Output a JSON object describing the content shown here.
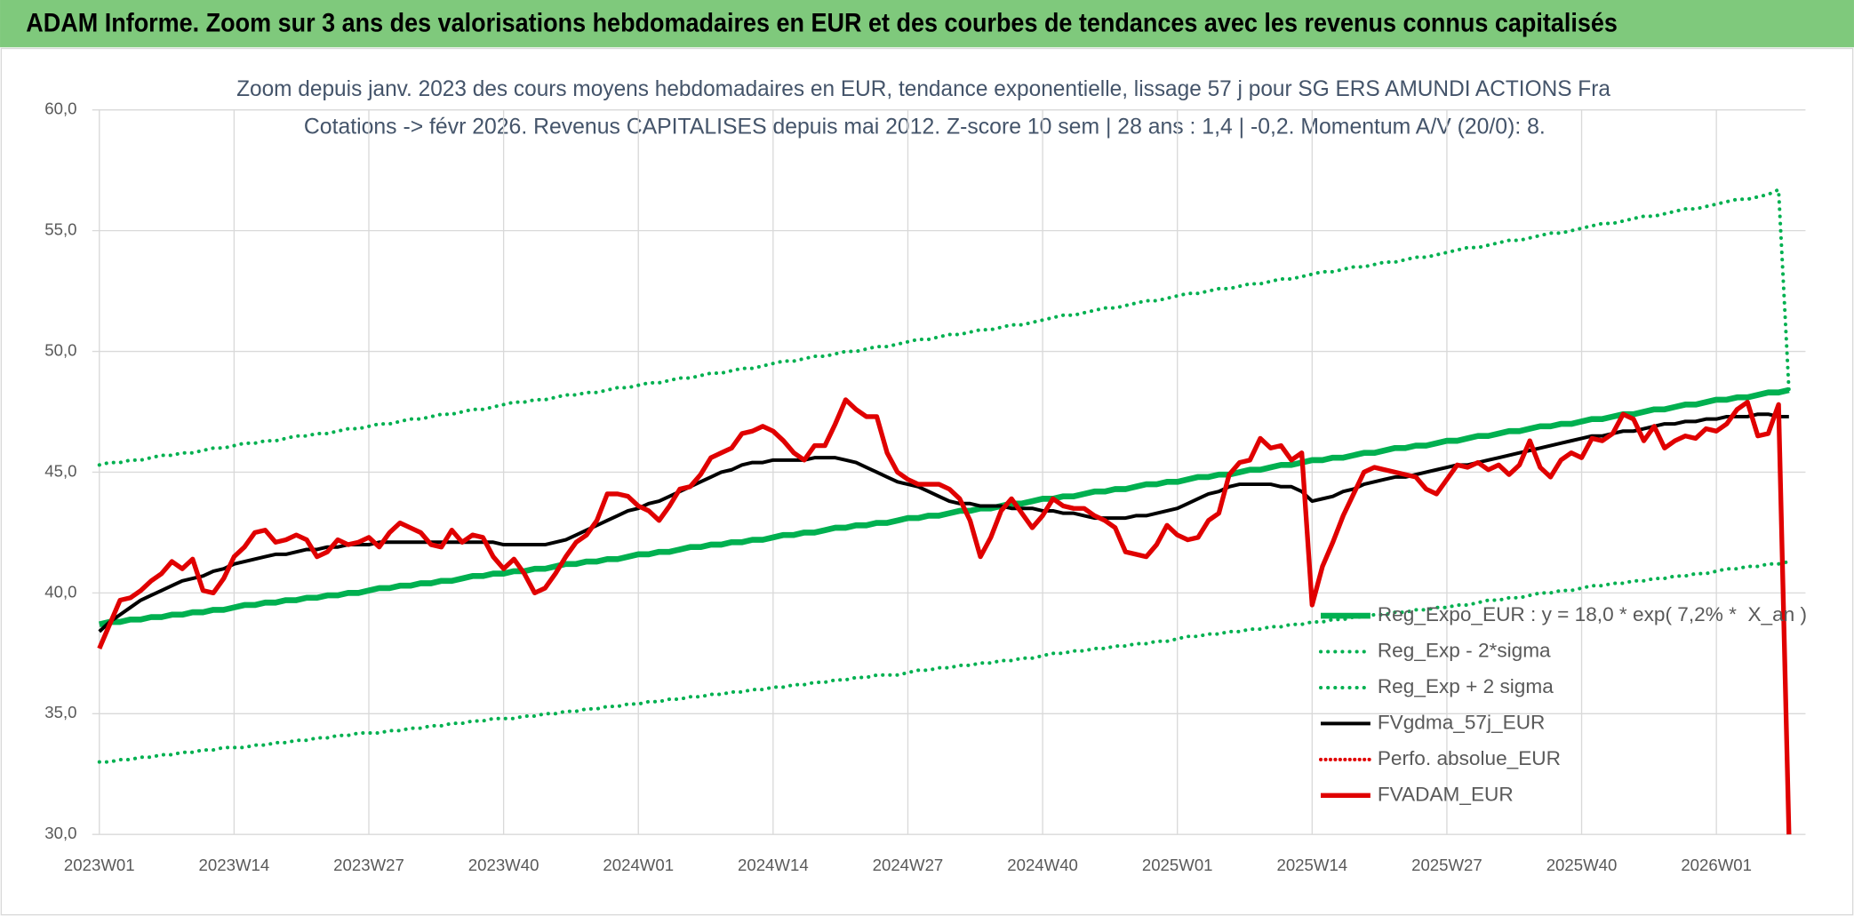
{
  "chart_data": {
    "type": "line",
    "title": "ADAM Informe. Zoom sur 3 ans des valorisations hebdomadaires en EUR et des courbes de tendances avec les revenus connus capitalisés",
    "subtitle": [
      "Zoom depuis janv. 2023 des cours moyens hebdomadaires en EUR, tendance exponentielle, lissage 57 j pour SG ERS AMUNDI ACTIONS Fra",
      "Cotations -> févr 2026. Revenus CAPITALISES depuis mai 2012. Z-score 10 sem | 28 ans : 1,4 | -0,2. Momentum A/V (20/0): 8."
    ],
    "categories": [
      "2023W01",
      null,
      null,
      null,
      null,
      null,
      null,
      null,
      null,
      null,
      null,
      null,
      null,
      "2023W14",
      null,
      null,
      null,
      null,
      null,
      null,
      null,
      null,
      null,
      null,
      null,
      null,
      "2023W27",
      null,
      null,
      null,
      null,
      null,
      null,
      null,
      null,
      null,
      null,
      null,
      null,
      "2023W40",
      null,
      null,
      null,
      null,
      null,
      null,
      null,
      null,
      null,
      null,
      null,
      null,
      "2024W01",
      null,
      null,
      null,
      null,
      null,
      null,
      null,
      null,
      null,
      null,
      null,
      null,
      "2024W14",
      null,
      null,
      null,
      null,
      null,
      null,
      null,
      null,
      null,
      null,
      null,
      null,
      "2024W27",
      null,
      null,
      null,
      null,
      null,
      null,
      null,
      null,
      null,
      null,
      null,
      null,
      "2024W40",
      null,
      null,
      null,
      null,
      null,
      null,
      null,
      null,
      null,
      null,
      null,
      null,
      "2025W01",
      null,
      null,
      null,
      null,
      null,
      null,
      null,
      null,
      null,
      null,
      null,
      null,
      "2025W14",
      null,
      null,
      null,
      null,
      null,
      null,
      null,
      null,
      null,
      null,
      null,
      null,
      "2025W27",
      null,
      null,
      null,
      null,
      null,
      null,
      null,
      null,
      null,
      null,
      null,
      null,
      "2025W40",
      null,
      null,
      null,
      null,
      null,
      null,
      null,
      null,
      null,
      null,
      null,
      null,
      "2026W01",
      null,
      null,
      null,
      null,
      null,
      null,
      null
    ],
    "series": [
      {
        "name": "Reg_Expo_EUR : y = 18,0 * exp( 7,2% *  X_an )",
        "color": "#00b050",
        "style": "solid",
        "width": 5,
        "values": [
          38.7,
          38.8,
          38.8,
          38.9,
          38.9,
          39.0,
          39.0,
          39.1,
          39.1,
          39.2,
          39.2,
          39.3,
          39.3,
          39.4,
          39.5,
          39.5,
          39.6,
          39.6,
          39.7,
          39.7,
          39.8,
          39.8,
          39.9,
          39.9,
          40.0,
          40.0,
          40.1,
          40.2,
          40.2,
          40.3,
          40.3,
          40.4,
          40.4,
          40.5,
          40.5,
          40.6,
          40.7,
          40.7,
          40.8,
          40.8,
          40.9,
          40.9,
          41.0,
          41.0,
          41.1,
          41.2,
          41.2,
          41.3,
          41.3,
          41.4,
          41.4,
          41.5,
          41.6,
          41.6,
          41.7,
          41.7,
          41.8,
          41.9,
          41.9,
          42.0,
          42.0,
          42.1,
          42.1,
          42.2,
          42.2,
          42.3,
          42.4,
          42.4,
          42.5,
          42.5,
          42.6,
          42.7,
          42.7,
          42.8,
          42.8,
          42.9,
          42.9,
          43.0,
          43.1,
          43.1,
          43.2,
          43.2,
          43.3,
          43.4,
          43.4,
          43.5,
          43.5,
          43.6,
          43.7,
          43.7,
          43.8,
          43.9,
          43.9,
          44.0,
          44.0,
          44.1,
          44.2,
          44.2,
          44.3,
          44.3,
          44.4,
          44.5,
          44.5,
          44.6,
          44.6,
          44.7,
          44.8,
          44.8,
          44.9,
          44.9,
          45.0,
          45.1,
          45.1,
          45.2,
          45.3,
          45.3,
          45.4,
          45.5,
          45.5,
          45.6,
          45.6,
          45.7,
          45.8,
          45.8,
          45.9,
          46.0,
          46.0,
          46.1,
          46.1,
          46.2,
          46.3,
          46.3,
          46.4,
          46.5,
          46.5,
          46.6,
          46.7,
          46.7,
          46.8,
          46.9,
          46.9,
          47.0,
          47.0,
          47.1,
          47.2,
          47.2,
          47.3,
          47.4,
          47.4,
          47.5,
          47.6,
          47.6,
          47.7,
          47.8,
          47.8,
          47.9,
          48.0,
          48.0,
          48.1,
          48.1,
          48.2,
          48.3,
          48.3,
          48.4
        ]
      },
      {
        "name": "Reg_Exp - 2*sigma",
        "color": "#00b050",
        "style": "dotted",
        "width": 3,
        "values": [
          33.0,
          33.0,
          33.1,
          33.1,
          33.2,
          33.2,
          33.3,
          33.3,
          33.4,
          33.4,
          33.5,
          33.5,
          33.6,
          33.6,
          33.6,
          33.7,
          33.7,
          33.8,
          33.8,
          33.9,
          33.9,
          34.0,
          34.0,
          34.1,
          34.1,
          34.2,
          34.2,
          34.2,
          34.3,
          34.3,
          34.4,
          34.4,
          34.5,
          34.5,
          34.6,
          34.6,
          34.7,
          34.7,
          34.8,
          34.8,
          34.8,
          34.9,
          34.9,
          35.0,
          35.0,
          35.1,
          35.1,
          35.2,
          35.2,
          35.3,
          35.3,
          35.4,
          35.4,
          35.5,
          35.5,
          35.6,
          35.6,
          35.7,
          35.7,
          35.8,
          35.8,
          35.9,
          35.9,
          36.0,
          36.0,
          36.1,
          36.1,
          36.2,
          36.2,
          36.3,
          36.3,
          36.4,
          36.4,
          36.5,
          36.5,
          36.6,
          36.6,
          36.6,
          36.7,
          36.8,
          36.8,
          36.9,
          36.9,
          37.0,
          37.0,
          37.1,
          37.1,
          37.2,
          37.2,
          37.3,
          37.3,
          37.4,
          37.5,
          37.5,
          37.6,
          37.6,
          37.7,
          37.7,
          37.8,
          37.8,
          37.9,
          37.9,
          38.0,
          38.0,
          38.1,
          38.2,
          38.2,
          38.3,
          38.3,
          38.4,
          38.4,
          38.5,
          38.5,
          38.6,
          38.6,
          38.7,
          38.7,
          38.8,
          38.8,
          38.9,
          38.9,
          39.0,
          39.0,
          39.1,
          39.1,
          39.2,
          39.2,
          39.3,
          39.3,
          39.4,
          39.4,
          39.5,
          39.5,
          39.6,
          39.7,
          39.7,
          39.8,
          39.8,
          39.9,
          40.0,
          40.0,
          40.1,
          40.1,
          40.2,
          40.3,
          40.3,
          40.4,
          40.4,
          40.5,
          40.5,
          40.6,
          40.6,
          40.7,
          40.7,
          40.8,
          40.8,
          40.9,
          41.0,
          41.0,
          41.1,
          41.1,
          41.2,
          41.2,
          41.3
        ]
      },
      {
        "name": "Reg_Exp + 2 sigma",
        "color": "#00b050",
        "style": "dotted",
        "width": 3,
        "values": [
          45.3,
          45.4,
          45.4,
          45.5,
          45.5,
          45.6,
          45.7,
          45.7,
          45.8,
          45.8,
          45.9,
          46.0,
          46.0,
          46.1,
          46.2,
          46.2,
          46.3,
          46.3,
          46.4,
          46.5,
          46.5,
          46.6,
          46.6,
          46.7,
          46.8,
          46.8,
          46.9,
          47.0,
          47.0,
          47.1,
          47.2,
          47.2,
          47.3,
          47.4,
          47.4,
          47.5,
          47.6,
          47.6,
          47.7,
          47.8,
          47.9,
          47.9,
          48.0,
          48.0,
          48.1,
          48.2,
          48.2,
          48.3,
          48.3,
          48.4,
          48.5,
          48.5,
          48.6,
          48.7,
          48.7,
          48.8,
          48.9,
          48.9,
          49.0,
          49.1,
          49.1,
          49.2,
          49.3,
          49.3,
          49.4,
          49.5,
          49.6,
          49.6,
          49.7,
          49.8,
          49.8,
          49.9,
          50.0,
          50.0,
          50.1,
          50.2,
          50.2,
          50.3,
          50.4,
          50.5,
          50.5,
          50.6,
          50.7,
          50.7,
          50.8,
          50.9,
          50.9,
          51.0,
          51.1,
          51.1,
          51.2,
          51.3,
          51.4,
          51.5,
          51.5,
          51.6,
          51.7,
          51.8,
          51.8,
          51.9,
          52.0,
          52.1,
          52.1,
          52.2,
          52.3,
          52.4,
          52.4,
          52.5,
          52.6,
          52.6,
          52.7,
          52.8,
          52.8,
          52.9,
          53.0,
          53.0,
          53.1,
          53.2,
          53.3,
          53.3,
          53.4,
          53.5,
          53.5,
          53.6,
          53.7,
          53.7,
          53.8,
          53.9,
          53.9,
          54.0,
          54.1,
          54.2,
          54.3,
          54.3,
          54.4,
          54.5,
          54.6,
          54.6,
          54.7,
          54.8,
          54.9,
          54.9,
          55.0,
          55.1,
          55.2,
          55.3,
          55.3,
          55.4,
          55.5,
          55.6,
          55.6,
          55.7,
          55.8,
          55.9,
          55.9,
          56.0,
          56.1,
          56.2,
          56.3,
          56.3,
          56.4,
          56.5,
          56.7,
          48.4
        ]
      },
      {
        "name": "FVgdma_57j_EUR",
        "color": "#000000",
        "style": "solid",
        "width": 3,
        "values": [
          38.4,
          38.8,
          39.1,
          39.4,
          39.7,
          39.9,
          40.1,
          40.3,
          40.5,
          40.6,
          40.7,
          40.9,
          41.0,
          41.2,
          41.3,
          41.4,
          41.5,
          41.6,
          41.6,
          41.7,
          41.8,
          41.8,
          41.9,
          41.9,
          42.0,
          42.0,
          42.0,
          42.1,
          42.1,
          42.1,
          42.1,
          42.1,
          42.1,
          42.1,
          42.1,
          42.1,
          42.1,
          42.1,
          42.1,
          42.0,
          42.0,
          42.0,
          42.0,
          42.0,
          42.1,
          42.2,
          42.4,
          42.6,
          42.8,
          43.0,
          43.2,
          43.4,
          43.5,
          43.7,
          43.8,
          44.0,
          44.2,
          44.4,
          44.6,
          44.8,
          45.0,
          45.1,
          45.3,
          45.4,
          45.4,
          45.5,
          45.5,
          45.5,
          45.5,
          45.6,
          45.6,
          45.6,
          45.5,
          45.4,
          45.2,
          45.0,
          44.8,
          44.6,
          44.5,
          44.4,
          44.2,
          44.0,
          43.8,
          43.7,
          43.7,
          43.6,
          43.6,
          43.6,
          43.5,
          43.5,
          43.5,
          43.4,
          43.4,
          43.3,
          43.3,
          43.2,
          43.1,
          43.1,
          43.1,
          43.1,
          43.2,
          43.2,
          43.3,
          43.4,
          43.5,
          43.7,
          43.9,
          44.1,
          44.2,
          44.4,
          44.5,
          44.5,
          44.5,
          44.5,
          44.4,
          44.4,
          44.2,
          43.8,
          43.9,
          44.0,
          44.2,
          44.3,
          44.5,
          44.6,
          44.7,
          44.8,
          44.8,
          44.9,
          45.0,
          45.1,
          45.2,
          45.3,
          45.3,
          45.4,
          45.5,
          45.6,
          45.7,
          45.8,
          45.9,
          46.0,
          46.1,
          46.2,
          46.3,
          46.4,
          46.5,
          46.5,
          46.6,
          46.7,
          46.7,
          46.8,
          46.9,
          47.0,
          47.0,
          47.1,
          47.1,
          47.2,
          47.2,
          47.3,
          47.3,
          47.3,
          47.4,
          47.4,
          47.3,
          47.3
        ]
      },
      {
        "name": "Perfo. absolue_EUR",
        "color": "#e00000",
        "style": "dotted",
        "width": 2,
        "values": [
          null,
          null,
          null,
          null,
          null,
          null,
          null,
          null,
          null,
          null,
          null,
          null,
          null,
          null,
          null,
          null,
          null,
          null,
          null,
          null,
          null,
          null,
          null,
          null,
          null,
          null,
          null,
          null,
          null,
          null,
          null,
          null,
          null,
          null,
          null,
          null,
          null,
          null,
          null,
          null,
          null,
          null,
          null,
          null,
          null,
          null,
          null,
          null,
          null,
          null,
          null,
          null,
          null,
          null,
          null,
          null,
          null,
          null,
          null,
          null,
          null,
          null,
          null,
          null,
          null,
          null,
          null,
          null,
          null,
          null,
          null,
          null,
          null,
          null,
          null,
          null,
          null,
          null,
          null,
          null,
          null,
          null,
          null,
          null,
          null,
          null,
          null,
          null,
          null,
          null,
          null,
          null,
          null,
          null,
          null,
          null,
          null,
          null,
          null,
          null,
          null,
          null,
          null,
          null,
          null,
          null,
          null,
          null,
          null,
          null,
          null,
          null,
          null,
          null,
          null,
          null,
          null,
          null,
          null,
          null,
          null,
          null,
          null,
          null,
          null,
          null,
          null,
          null,
          null,
          null,
          null,
          null,
          null,
          null,
          null,
          null,
          null,
          null,
          null,
          null,
          null,
          null,
          null,
          null,
          null,
          null,
          null,
          null,
          null,
          null,
          null,
          null,
          null,
          null,
          null,
          null,
          null,
          null,
          null,
          null,
          null,
          null,
          null,
          null
        ]
      },
      {
        "name": "FVADAM_EUR",
        "color": "#e00000",
        "style": "solid",
        "width": 4,
        "values": [
          37.7,
          38.7,
          39.7,
          39.8,
          40.1,
          40.5,
          40.8,
          41.3,
          41.0,
          41.4,
          40.1,
          40.0,
          40.6,
          41.5,
          41.9,
          42.5,
          42.6,
          42.1,
          42.2,
          42.4,
          42.2,
          41.5,
          41.7,
          42.2,
          42.0,
          42.1,
          42.3,
          41.9,
          42.5,
          42.9,
          42.7,
          42.5,
          42.0,
          41.9,
          42.6,
          42.1,
          42.4,
          42.3,
          41.5,
          41.0,
          41.4,
          40.8,
          40.0,
          40.2,
          40.8,
          41.5,
          42.1,
          42.4,
          43.0,
          44.1,
          44.1,
          44.0,
          43.6,
          43.4,
          43.0,
          43.6,
          44.3,
          44.4,
          44.9,
          45.6,
          45.8,
          46.0,
          46.6,
          46.7,
          46.9,
          46.7,
          46.3,
          45.8,
          45.5,
          46.1,
          46.1,
          47.0,
          48.0,
          47.6,
          47.3,
          47.3,
          45.8,
          45.0,
          44.7,
          44.5,
          44.5,
          44.5,
          44.3,
          43.9,
          43.0,
          41.5,
          42.3,
          43.4,
          43.9,
          43.3,
          42.7,
          43.2,
          43.9,
          43.6,
          43.5,
          43.5,
          43.2,
          43.0,
          42.7,
          41.7,
          41.6,
          41.5,
          42.0,
          42.8,
          42.4,
          42.2,
          42.3,
          43.0,
          43.3,
          44.9,
          45.4,
          45.5,
          46.4,
          46.0,
          46.1,
          45.5,
          45.8,
          39.5,
          41.1,
          42.1,
          43.2,
          44.1,
          45.0,
          45.2,
          45.1,
          45.0,
          44.9,
          44.8,
          44.3,
          44.1,
          44.7,
          45.3,
          45.2,
          45.4,
          45.1,
          45.3,
          44.9,
          45.3,
          46.3,
          45.2,
          44.8,
          45.5,
          45.8,
          45.6,
          46.4,
          46.3,
          46.6,
          47.4,
          47.2,
          46.3,
          46.9,
          46.0,
          46.3,
          46.5,
          46.4,
          46.8,
          46.7,
          47.0,
          47.6,
          47.9,
          46.5,
          46.6,
          47.8,
          30.0
        ]
      }
    ],
    "ylim": [
      30,
      60
    ],
    "yticks": [
      {
        "value": 30,
        "label": "30,0"
      },
      {
        "value": 35,
        "label": "35,0"
      },
      {
        "value": 40,
        "label": "40,0"
      },
      {
        "value": 45,
        "label": "45,0"
      },
      {
        "value": 50,
        "label": "50,0"
      },
      {
        "value": 55,
        "label": "55,0"
      },
      {
        "value": 60,
        "label": "60,0"
      }
    ],
    "grid": true,
    "legend": "right"
  }
}
